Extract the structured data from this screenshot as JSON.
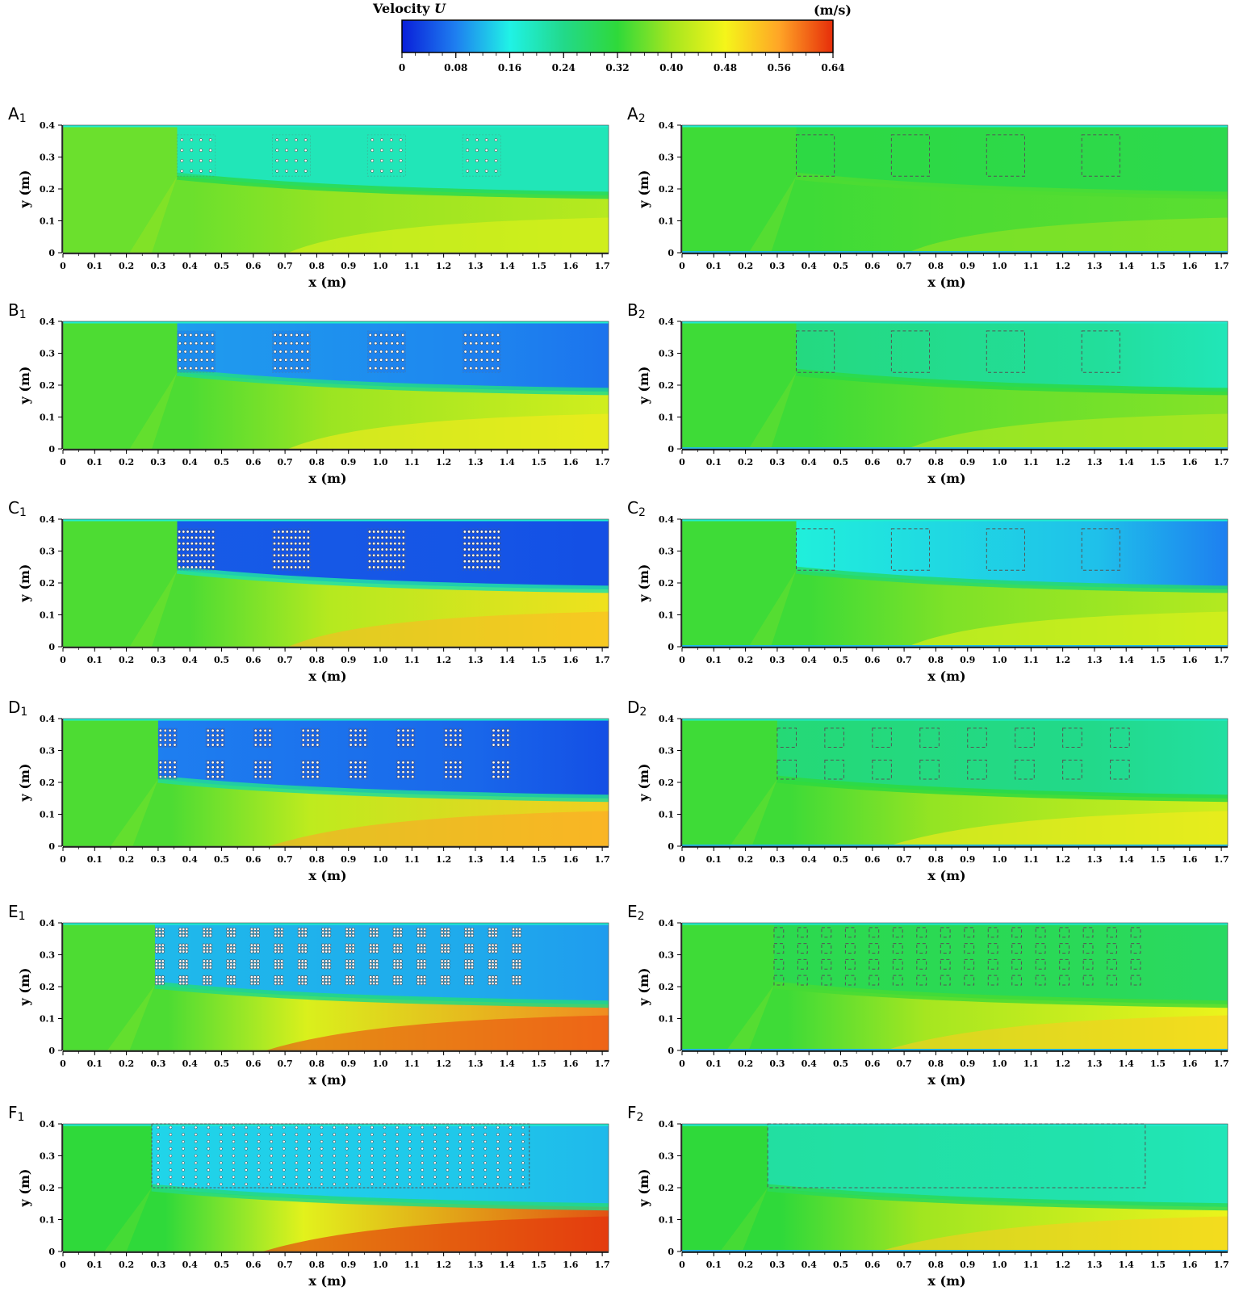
{
  "colorbar": {
    "title": "Velocity",
    "variable": "U",
    "unit": "(m/s)",
    "vmin": 0,
    "vmax": 0.64,
    "ticks": [
      "0",
      "0.08",
      "0.16",
      "0.24",
      "0.32",
      "0.40",
      "0.48",
      "0.56",
      "0.64"
    ],
    "colors": [
      "#0a1fd9",
      "#1e7ff0",
      "#20f2e6",
      "#22d98a",
      "#2fd93a",
      "#a6e61f",
      "#f5f51a",
      "#ffa526",
      "#e62d0a"
    ]
  },
  "chart_data": {
    "type": "heatmap",
    "x_unit_label": "x (m)",
    "y_unit_label": "y (m)",
    "x_ticks": [
      "0",
      "0.1",
      "0.2",
      "0.3",
      "0.4",
      "0.5",
      "0.6",
      "0.7",
      "0.8",
      "0.9",
      "1.0",
      "1.1",
      "1.2",
      "1.3",
      "1.4",
      "1.5",
      "1.6",
      "1.7"
    ],
    "y_ticks": [
      "0",
      "0.1",
      "0.2",
      "0.3",
      "0.4"
    ],
    "xlim": [
      0,
      1.72
    ],
    "ylim": [
      0,
      0.4
    ],
    "panels": [
      {
        "label": "A",
        "sub": "1",
        "type": "rigid",
        "n_cols": 1,
        "n_rows": 1,
        "dots": [
          4,
          4
        ],
        "vegetation": [
          {
            "x0": 0.36,
            "x1": 0.48
          },
          {
            "x0": 0.66,
            "x1": 0.78
          },
          {
            "x0": 0.96,
            "x1": 1.08
          },
          {
            "x0": 1.26,
            "x1": 1.38
          }
        ],
        "rows": [
          {
            "y0": 0.24,
            "y1": 0.37
          }
        ],
        "u_bg": 0.36,
        "u_wake": 0.2,
        "u_bottom": 0.42,
        "u_core": 0.2
      },
      {
        "label": "A",
        "sub": "2",
        "type": "flexible",
        "vegetation": [
          {
            "x0": 0.36,
            "x1": 0.48
          },
          {
            "x0": 0.66,
            "x1": 0.78
          },
          {
            "x0": 0.96,
            "x1": 1.08
          },
          {
            "x0": 1.26,
            "x1": 1.38
          }
        ],
        "rows": [
          {
            "y0": 0.24,
            "y1": 0.37
          }
        ],
        "u_bg": 0.33,
        "u_wake": 0.31,
        "u_bottom": 0.35,
        "u_core": 0.3
      },
      {
        "label": "B",
        "sub": "1",
        "type": "rigid",
        "dots": [
          7,
          5
        ],
        "vegetation": [
          {
            "x0": 0.36,
            "x1": 0.48
          },
          {
            "x0": 0.66,
            "x1": 0.78
          },
          {
            "x0": 0.96,
            "x1": 1.08
          },
          {
            "x0": 1.26,
            "x1": 1.38
          }
        ],
        "rows": [
          {
            "y0": 0.24,
            "y1": 0.37
          }
        ],
        "u_bg": 0.34,
        "u_wake": 0.1,
        "u_bottom": 0.45,
        "u_core": 0.07
      },
      {
        "label": "B",
        "sub": "2",
        "type": "flexible",
        "vegetation": [
          {
            "x0": 0.36,
            "x1": 0.48
          },
          {
            "x0": 0.66,
            "x1": 0.78
          },
          {
            "x0": 0.96,
            "x1": 1.08
          },
          {
            "x0": 1.26,
            "x1": 1.38
          }
        ],
        "rows": [
          {
            "y0": 0.24,
            "y1": 0.37
          }
        ],
        "u_bg": 0.33,
        "u_wake": 0.25,
        "u_bottom": 0.38,
        "u_core": 0.2
      },
      {
        "label": "C",
        "sub": "1",
        "type": "rigid",
        "dots": [
          9,
          7
        ],
        "vegetation": [
          {
            "x0": 0.36,
            "x1": 0.48
          },
          {
            "x0": 0.66,
            "x1": 0.78
          },
          {
            "x0": 0.96,
            "x1": 1.08
          },
          {
            "x0": 1.26,
            "x1": 1.38
          }
        ],
        "rows": [
          {
            "y0": 0.24,
            "y1": 0.37
          }
        ],
        "u_bg": 0.34,
        "u_wake": 0.05,
        "u_bottom": 0.5,
        "u_core": 0.04
      },
      {
        "label": "C",
        "sub": "2",
        "type": "flexible",
        "vegetation": [
          {
            "x0": 0.36,
            "x1": 0.48
          },
          {
            "x0": 0.66,
            "x1": 0.78
          },
          {
            "x0": 0.96,
            "x1": 1.08
          },
          {
            "x0": 1.26,
            "x1": 1.38
          }
        ],
        "rows": [
          {
            "y0": 0.24,
            "y1": 0.37
          }
        ],
        "u_bg": 0.33,
        "u_wake": 0.17,
        "u_bottom": 0.42,
        "u_core": 0.08
      },
      {
        "label": "D",
        "sub": "1",
        "type": "rigid",
        "dots": [
          4,
          4
        ],
        "vegetation": [
          {
            "x0": 0.3,
            "x1": 0.36
          },
          {
            "x0": 0.45,
            "x1": 0.51
          },
          {
            "x0": 0.6,
            "x1": 0.66
          },
          {
            "x0": 0.75,
            "x1": 0.81
          },
          {
            "x0": 0.9,
            "x1": 0.96
          },
          {
            "x0": 1.05,
            "x1": 1.11
          },
          {
            "x0": 1.2,
            "x1": 1.26
          },
          {
            "x0": 1.35,
            "x1": 1.41
          }
        ],
        "rows": [
          {
            "y0": 0.31,
            "y1": 0.37
          },
          {
            "y0": 0.21,
            "y1": 0.27
          }
        ],
        "u_bg": 0.34,
        "u_wake": 0.08,
        "u_bottom": 0.52,
        "u_core": 0.04
      },
      {
        "label": "D",
        "sub": "2",
        "type": "flexible",
        "vegetation": [
          {
            "x0": 0.3,
            "x1": 0.36
          },
          {
            "x0": 0.45,
            "x1": 0.51
          },
          {
            "x0": 0.6,
            "x1": 0.66
          },
          {
            "x0": 0.75,
            "x1": 0.81
          },
          {
            "x0": 0.9,
            "x1": 0.96
          },
          {
            "x0": 1.05,
            "x1": 1.11
          },
          {
            "x0": 1.2,
            "x1": 1.26
          },
          {
            "x0": 1.35,
            "x1": 1.41
          }
        ],
        "rows": [
          {
            "y0": 0.31,
            "y1": 0.37
          },
          {
            "y0": 0.21,
            "y1": 0.27
          }
        ],
        "u_bg": 0.33,
        "u_wake": 0.26,
        "u_bottom": 0.45,
        "u_core": 0.22
      },
      {
        "label": "E",
        "sub": "1",
        "type": "rigid",
        "dots": [
          3,
          3
        ],
        "vegetation": [
          {
            "x0": 0.29,
            "x1": 0.32
          },
          {
            "x0": 0.365,
            "x1": 0.395
          },
          {
            "x0": 0.44,
            "x1": 0.47
          },
          {
            "x0": 0.515,
            "x1": 0.545
          },
          {
            "x0": 0.59,
            "x1": 0.62
          },
          {
            "x0": 0.665,
            "x1": 0.695
          },
          {
            "x0": 0.74,
            "x1": 0.77
          },
          {
            "x0": 0.815,
            "x1": 0.845
          },
          {
            "x0": 0.89,
            "x1": 0.92
          },
          {
            "x0": 0.965,
            "x1": 0.995
          },
          {
            "x0": 1.04,
            "x1": 1.07
          },
          {
            "x0": 1.115,
            "x1": 1.145
          },
          {
            "x0": 1.19,
            "x1": 1.22
          },
          {
            "x0": 1.265,
            "x1": 1.295
          },
          {
            "x0": 1.34,
            "x1": 1.37
          },
          {
            "x0": 1.415,
            "x1": 1.445
          }
        ],
        "rows": [
          {
            "y0": 0.355,
            "y1": 0.385
          },
          {
            "y0": 0.305,
            "y1": 0.335
          },
          {
            "y0": 0.255,
            "y1": 0.285
          },
          {
            "y0": 0.205,
            "y1": 0.235
          }
        ],
        "u_bg": 0.34,
        "u_wake": 0.12,
        "u_bottom": 0.58,
        "u_core": 0.1
      },
      {
        "label": "E",
        "sub": "2",
        "type": "flexible",
        "vegetation": [
          {
            "x0": 0.29,
            "x1": 0.32
          },
          {
            "x0": 0.365,
            "x1": 0.395
          },
          {
            "x0": 0.44,
            "x1": 0.47
          },
          {
            "x0": 0.515,
            "x1": 0.545
          },
          {
            "x0": 0.59,
            "x1": 0.62
          },
          {
            "x0": 0.665,
            "x1": 0.695
          },
          {
            "x0": 0.74,
            "x1": 0.77
          },
          {
            "x0": 0.815,
            "x1": 0.845
          },
          {
            "x0": 0.89,
            "x1": 0.92
          },
          {
            "x0": 0.965,
            "x1": 0.995
          },
          {
            "x0": 1.04,
            "x1": 1.07
          },
          {
            "x0": 1.115,
            "x1": 1.145
          },
          {
            "x0": 1.19,
            "x1": 1.22
          },
          {
            "x0": 1.265,
            "x1": 1.295
          },
          {
            "x0": 1.34,
            "x1": 1.37
          },
          {
            "x0": 1.415,
            "x1": 1.445
          }
        ],
        "rows": [
          {
            "y0": 0.355,
            "y1": 0.385
          },
          {
            "y0": 0.305,
            "y1": 0.335
          },
          {
            "y0": 0.255,
            "y1": 0.285
          },
          {
            "y0": 0.205,
            "y1": 0.235
          }
        ],
        "u_bg": 0.33,
        "u_wake": 0.3,
        "u_bottom": 0.48,
        "u_core": 0.28
      },
      {
        "label": "F",
        "sub": "1",
        "type": "rigid",
        "grid": {
          "x0": 0.28,
          "x1": 1.47,
          "y0": 0.2,
          "y1": 0.4,
          "nx": 30,
          "ny": 9
        },
        "vegetation": [],
        "rows": [],
        "u_bg": 0.32,
        "u_wake": 0.14,
        "u_bottom": 0.62,
        "u_core": 0.12
      },
      {
        "label": "F",
        "sub": "2",
        "type": "flexible",
        "vegetation": [
          {
            "x0": 0.27,
            "x1": 1.46
          }
        ],
        "rows": [
          {
            "y0": 0.2,
            "y1": 0.4
          }
        ],
        "u_bg": 0.32,
        "u_wake": 0.22,
        "u_bottom": 0.48,
        "u_core": 0.2
      }
    ]
  }
}
